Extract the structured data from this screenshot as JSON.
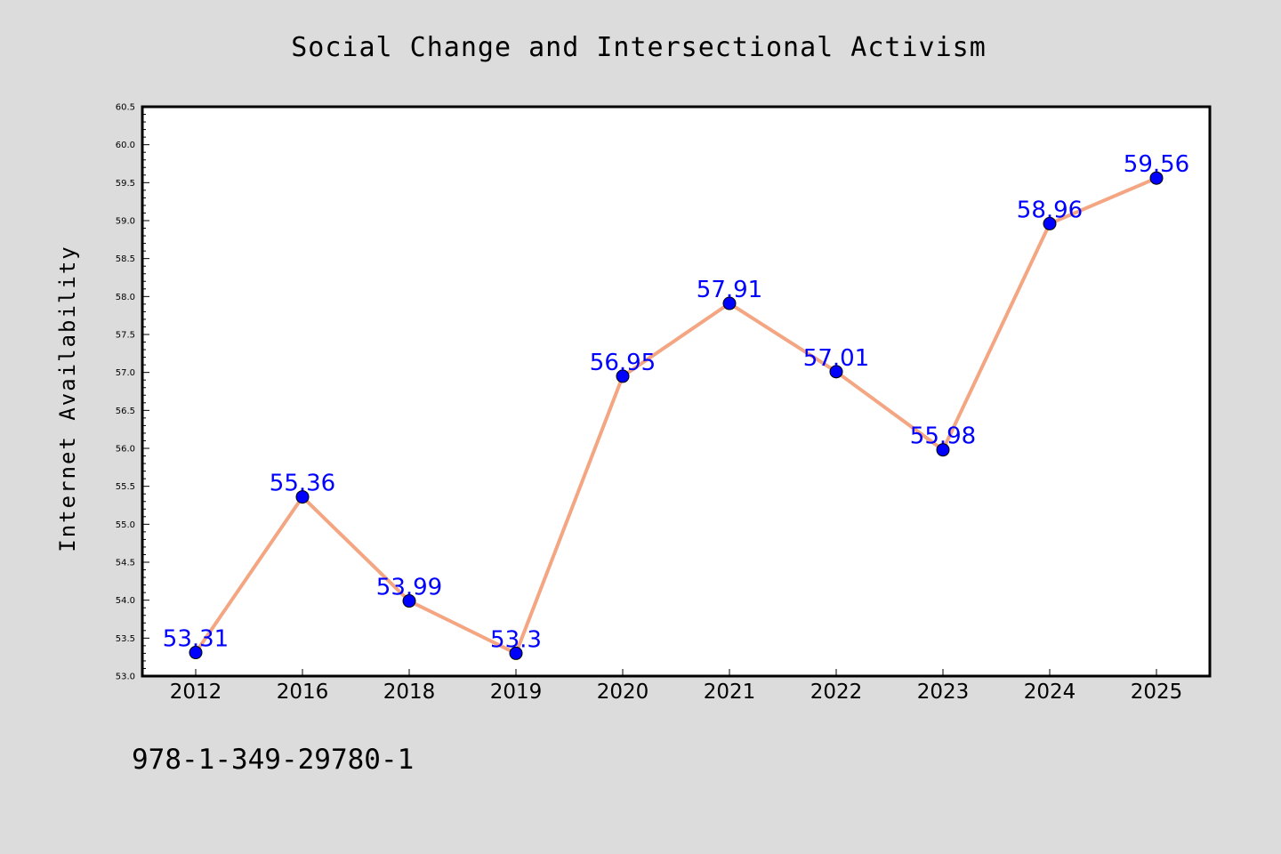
{
  "chart_data": {
    "type": "line",
    "title": "Social Change and Intersectional Activism",
    "xlabel": "",
    "ylabel": "Internet Availability",
    "categories": [
      "2012",
      "2016",
      "2018",
      "2019",
      "2020",
      "2021",
      "2022",
      "2023",
      "2024",
      "2025"
    ],
    "series": [
      {
        "values": [
          53.31,
          55.36,
          53.99,
          53.3,
          56.95,
          57.91,
          57.01,
          55.98,
          58.96,
          59.56
        ]
      }
    ],
    "data_labels": [
      "53.31",
      "55.36",
      "53.99",
      "53.3",
      "56.95",
      "57.91",
      "57.01",
      "55.98",
      "58.96",
      "59.56"
    ],
    "ylim": [
      53.0,
      60.5
    ],
    "yticks": [
      "53.0",
      "53.5",
      "54.0",
      "54.5",
      "55.0",
      "55.5",
      "56.0",
      "56.5",
      "57.0",
      "57.5",
      "58.0",
      "58.5",
      "59.0",
      "59.5",
      "60.0",
      "60.5"
    ],
    "grid": false,
    "legend": "none",
    "colors": {
      "line": "#f4a582",
      "marker": "#0000ff",
      "label": "#0000ff",
      "background": "#dcdcdc",
      "plot_background": "#ffffff"
    }
  },
  "footnote": "978-1-349-29780-1"
}
